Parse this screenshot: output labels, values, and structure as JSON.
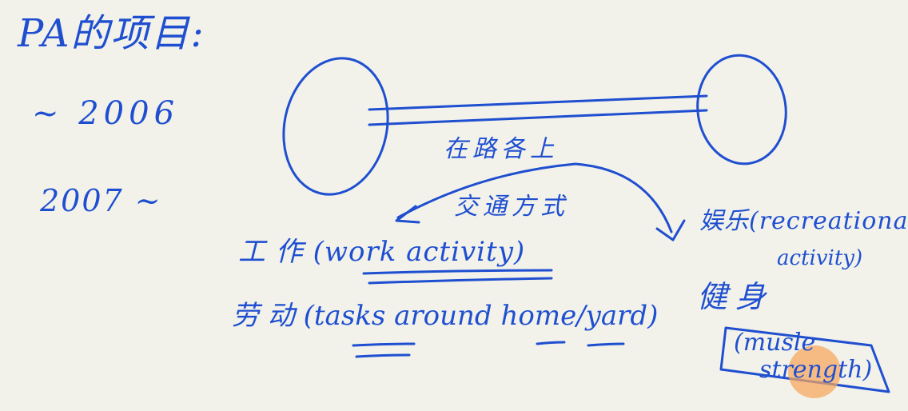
{
  "ink_color": "#1f4fd0",
  "pointer_color": "#f5a55a",
  "notes": {
    "title": "PA的项目:",
    "year_before": "~ 2006",
    "year_after": "2007 ~",
    "label_top": "在路各上",
    "label_middle": "交通方式",
    "work_row": "工 作 (work activity)",
    "chores_row": "劳 动 (tasks around home/yard)",
    "recreation_line1": "娱乐(recreational",
    "recreation_line2": "activity)",
    "strength_line1": "健身",
    "strength_line2": "(musle",
    "strength_line3": "strength)"
  }
}
